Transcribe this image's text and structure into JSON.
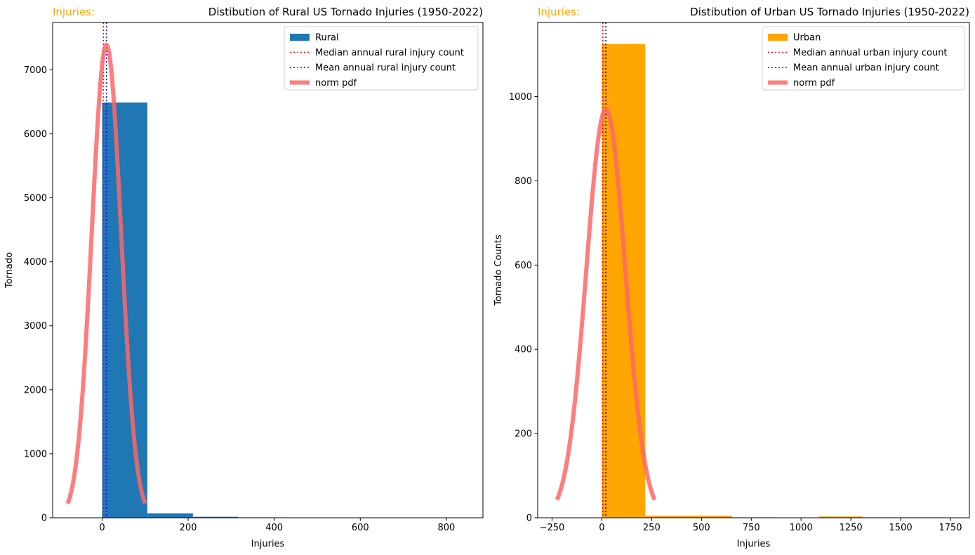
{
  "colors": {
    "rural": "#1f77b4",
    "urban": "#ffa500",
    "median": "#ff0000",
    "mean": "#0000ff",
    "pdf": "#ff6666",
    "corner_label": "#ffa500"
  },
  "chart_data": [
    {
      "type": "bar",
      "corner_label": "Injuries:",
      "title": "Distibution of Rural US Tornado Injuries (1950-2022)",
      "xlabel": "Injuries",
      "ylabel": "Tornado",
      "xlim": [
        -115,
        885
      ],
      "ylim": [
        0,
        7740
      ],
      "xticks": [
        0,
        200,
        400,
        600,
        800
      ],
      "yticks": [
        0,
        1000,
        2000,
        3000,
        4000,
        5000,
        6000,
        7000
      ],
      "grid": false,
      "legend_position": "top-right",
      "bar_color": "#1f77b4",
      "bins": [
        {
          "x0": 0,
          "x1": 105,
          "count": 6490
        },
        {
          "x0": 105,
          "x1": 211,
          "count": 70
        },
        {
          "x0": 211,
          "x1": 316,
          "count": 15
        },
        {
          "x0": 316,
          "x1": 421,
          "count": 6
        },
        {
          "x0": 421,
          "x1": 527,
          "count": 3
        },
        {
          "x0": 527,
          "x1": 632,
          "count": 1
        },
        {
          "x0": 632,
          "x1": 737,
          "count": 0
        },
        {
          "x0": 737,
          "x1": 843,
          "count": 1
        }
      ],
      "median": 3,
      "mean": 10,
      "pdf_curve": {
        "x_min": -80,
        "x_max": 100,
        "mu": 10,
        "sigma": 34,
        "peak": 7390
      },
      "legend": [
        {
          "label": "Rural",
          "kind": "patch",
          "color": "#1f77b4"
        },
        {
          "label": "Median annual rural injury count",
          "kind": "dotted",
          "color": "#ff0000"
        },
        {
          "label": "Mean annual rural injury count",
          "kind": "dotted",
          "color": "#0000ff"
        },
        {
          "label": "norm pdf",
          "kind": "thick",
          "color": "#ff6666"
        }
      ]
    },
    {
      "type": "bar",
      "corner_label": "Injuries:",
      "title": "Distibution of Urban US Tornado Injuries (1950-2022)",
      "xlabel": "Injuries",
      "ylabel": "Tornado Counts",
      "xlim": [
        -322,
        1845
      ],
      "ylim": [
        0,
        1176
      ],
      "xticks": [
        -250,
        0,
        250,
        500,
        750,
        1000,
        1250,
        1500,
        1750
      ],
      "yticks": [
        0,
        200,
        400,
        600,
        800,
        1000
      ],
      "grid": false,
      "legend_position": "top-right",
      "bar_color": "#ffa500",
      "bins": [
        {
          "x0": 0,
          "x1": 218,
          "count": 1125
        },
        {
          "x0": 218,
          "x1": 436,
          "count": 5
        },
        {
          "x0": 436,
          "x1": 654,
          "count": 5
        },
        {
          "x0": 654,
          "x1": 872,
          "count": 1
        },
        {
          "x0": 872,
          "x1": 1090,
          "count": 0
        },
        {
          "x0": 1090,
          "x1": 1308,
          "count": 3
        },
        {
          "x0": 1308,
          "x1": 1526,
          "count": 1
        },
        {
          "x0": 1526,
          "x1": 1744,
          "count": 1
        }
      ],
      "median": 5,
      "mean": 20,
      "pdf_curve": {
        "x_min": -225,
        "x_max": 265,
        "mu": 20,
        "sigma": 98,
        "peak": 970
      },
      "legend": [
        {
          "label": "Urban",
          "kind": "patch",
          "color": "#ffa500"
        },
        {
          "label": "Median annual urban injury count",
          "kind": "dotted",
          "color": "#ff0000"
        },
        {
          "label": "Mean annual urban injury count",
          "kind": "dotted",
          "color": "#0000ff"
        },
        {
          "label": "norm pdf",
          "kind": "thick",
          "color": "#ff6666"
        }
      ]
    }
  ]
}
